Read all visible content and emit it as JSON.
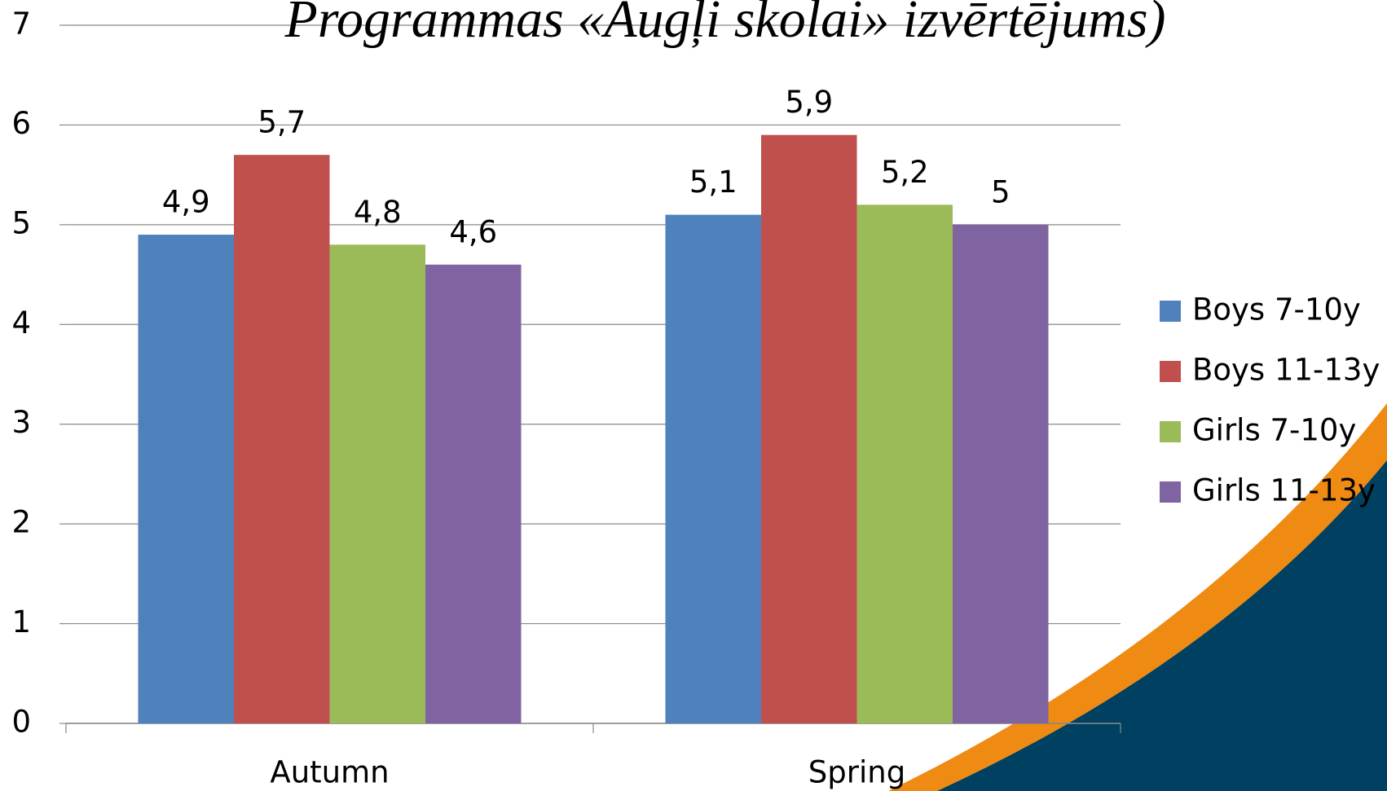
{
  "chart_data": {
    "type": "bar",
    "title": "Programmas «Augļi skolai» izvērtējums)",
    "categories": [
      "Autumn",
      "Spring"
    ],
    "series": [
      {
        "name": "Boys 7-10y",
        "color": "#4f81bd",
        "values": [
          4.9,
          5.1
        ],
        "value_labels": [
          "4,9",
          "5,1"
        ]
      },
      {
        "name": "Boys 11-13y",
        "color": "#c0504d",
        "values": [
          5.7,
          5.9
        ],
        "value_labels": [
          "5,7",
          "5,9"
        ]
      },
      {
        "name": "Girls 7-10y",
        "color": "#9bbb59",
        "values": [
          4.8,
          5.2
        ],
        "value_labels": [
          "4,8",
          "5,2"
        ]
      },
      {
        "name": "Girls 11-13y",
        "color": "#8064a2",
        "values": [
          4.6,
          5
        ],
        "value_labels": [
          "4,6",
          "5"
        ]
      }
    ],
    "ylim": [
      0,
      7
    ],
    "yticks": [
      0,
      1,
      2,
      3,
      4,
      5,
      6,
      7
    ],
    "grid": true,
    "legend": "right"
  }
}
